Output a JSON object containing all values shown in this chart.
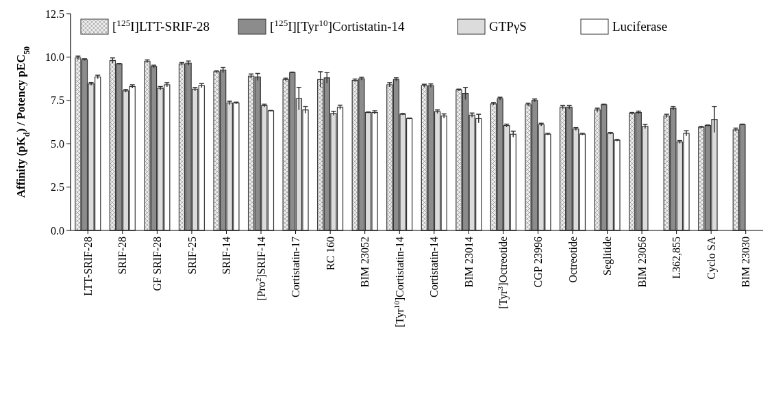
{
  "chart_data": {
    "type": "bar",
    "ylabel": "Affinity (pK$_{d}$) / Potency pEC$_{50}$",
    "categories": [
      "LTT-SRIF-28",
      "SRIF-28",
      "GF SRIF-28",
      "SRIF-25",
      "SRIF-14",
      "[Pro$^{2}$]SRIF-14",
      "Cortistatin-17",
      "RC 160",
      "BIM 23052",
      "[Tyr$^{10}$]Cortistatin-14",
      "Cortistatin-14",
      "BIM 23014",
      "[Tyr$^{3}$]Octreotide",
      "CGP 23996",
      "Octreotide",
      "Seglitide",
      "BIM 23056",
      "L362,855",
      "Cyclo SA",
      "BIM 23030"
    ],
    "series": [
      {
        "name": "[$^{125}$I]LTT-SRIF-28",
        "color": "#ededed",
        "values": [
          9.95,
          9.8,
          9.75,
          9.6,
          9.15,
          8.9,
          8.7,
          8.7,
          8.65,
          8.4,
          8.35,
          8.1,
          7.3,
          7.25,
          7.1,
          6.95,
          6.75,
          6.6,
          5.95,
          5.8
        ],
        "errors": [
          0.1,
          0.15,
          0.08,
          0.08,
          0.05,
          0.12,
          0.08,
          0.45,
          0.08,
          0.12,
          0.08,
          0.05,
          0.08,
          0.08,
          0.1,
          0.1,
          0.05,
          0.1,
          0.05,
          0.1
        ]
      },
      {
        "name": "[$^{125}$I][Tyr$^{10}$]Cortistatin-14",
        "color": "#8c8c8c",
        "values": [
          9.85,
          9.6,
          9.45,
          9.65,
          9.25,
          8.85,
          9.1,
          8.8,
          8.75,
          8.7,
          8.35,
          7.9,
          7.6,
          7.5,
          7.1,
          7.25,
          6.8,
          7.05,
          6.05,
          6.1
        ],
        "errors": [
          0.05,
          0.03,
          0.08,
          0.12,
          0.15,
          0.2,
          0.03,
          0.3,
          0.08,
          0.1,
          0.1,
          0.35,
          0.08,
          0.08,
          0.1,
          0.03,
          0.08,
          0.1,
          0.03,
          0.03
        ]
      },
      {
        "name": "GTPγS",
        "color": "#dcdcdc",
        "values": [
          8.45,
          8.05,
          8.2,
          8.15,
          7.35,
          7.2,
          7.6,
          6.75,
          6.8,
          6.7,
          6.85,
          6.65,
          6.05,
          6.1,
          5.85,
          5.6,
          6.0,
          5.1,
          6.4,
          null
        ],
        "errors": [
          0.08,
          0.08,
          0.1,
          0.1,
          0.1,
          0.08,
          0.65,
          0.12,
          0.03,
          0.05,
          0.1,
          0.12,
          0.08,
          0.08,
          0.08,
          0.05,
          0.12,
          0.08,
          0.75,
          null
        ]
      },
      {
        "name": "Luciferase",
        "color": "#ffffff",
        "values": [
          8.85,
          8.3,
          8.4,
          8.35,
          7.35,
          6.9,
          6.95,
          7.1,
          6.8,
          6.45,
          6.6,
          6.45,
          5.55,
          5.55,
          5.55,
          5.2,
          null,
          5.6,
          null,
          null
        ],
        "errors": [
          0.1,
          0.1,
          0.12,
          0.12,
          0.05,
          0.02,
          0.2,
          0.12,
          0.1,
          0.03,
          0.12,
          0.25,
          0.17,
          0.05,
          0.05,
          0.05,
          null,
          0.15,
          null,
          null
        ]
      }
    ],
    "ylim": [
      0,
      12.5
    ],
    "yticks": [
      {
        "value": 0,
        "label": "0.0"
      },
      2.5,
      {
        "value": 5,
        "label": "5.0"
      },
      7.5,
      {
        "value": 10,
        "label": "10.0"
      },
      12.5
    ],
    "legend": "top",
    "grid": false
  }
}
